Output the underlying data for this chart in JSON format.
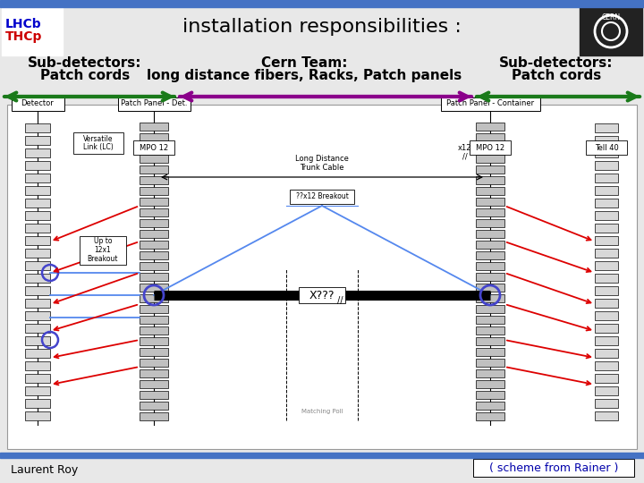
{
  "title": "installation responsibilities :",
  "bg_color": "#e8e8e8",
  "header_bar_color": "#4472c4",
  "footer_bar_color": "#4472c4",
  "left_label_line1": "Sub-detectors:",
  "left_label_line2": "Patch cords",
  "center_label_line1": "Cern Team:",
  "center_label_line2": "long distance fibers, Racks, Patch panels",
  "right_label_line1": "Sub-detectors:",
  "right_label_line2": "Patch cords",
  "arrow_green": "#1a7a1a",
  "arrow_purple": "#8b008b",
  "bottom_left": "Laurent Roy",
  "bottom_right": "( scheme from Rainer )",
  "white": "#ffffff",
  "black": "#000000",
  "red": "#dd0000",
  "blue": "#4444cc",
  "gray": "#888888"
}
